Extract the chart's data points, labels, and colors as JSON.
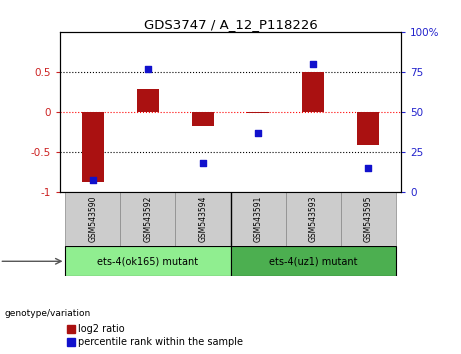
{
  "title": "GDS3747 / A_12_P118226",
  "categories": [
    "GSM543590",
    "GSM543592",
    "GSM543594",
    "GSM543591",
    "GSM543593",
    "GSM543595"
  ],
  "log2_ratio": [
    -0.88,
    0.28,
    -0.18,
    -0.02,
    0.5,
    -0.42
  ],
  "percentile_rank": [
    7,
    77,
    18,
    37,
    80,
    15
  ],
  "group1_label": "ets-4(ok165) mutant",
  "group2_label": "ets-4(uz1) mutant",
  "group1_indices": [
    0,
    1,
    2
  ],
  "group2_indices": [
    3,
    4,
    5
  ],
  "bar_color": "#aa1111",
  "dot_color": "#1111cc",
  "ylim_left": [
    -1.0,
    1.0
  ],
  "ylim_right": [
    0,
    100
  ],
  "yticks_left": [
    -1.0,
    -0.5,
    0.0,
    0.5
  ],
  "yticks_right": [
    0,
    25,
    50,
    75,
    100
  ],
  "hline_positions": [
    -0.5,
    0.0,
    0.5
  ],
  "hline_styles": [
    "dotted",
    "dotted",
    "dotted"
  ],
  "hline_colors": [
    "black",
    "red",
    "black"
  ],
  "group1_bg": "#90ee90",
  "group2_bg": "#4caf50",
  "sample_bg": "#cccccc",
  "genotype_label": "genotype/variation",
  "legend_bar_label": "log2 ratio",
  "legend_dot_label": "percentile rank within the sample",
  "tick_label_color_left": "#cc2222",
  "tick_label_color_right": "#2222cc",
  "bar_width": 0.4
}
